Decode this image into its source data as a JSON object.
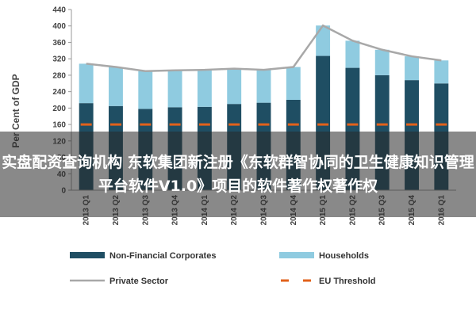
{
  "chart_data": {
    "type": "bar",
    "stacked": true,
    "ylabel": "Per Cent of GDP",
    "ylim": [
      0,
      440
    ],
    "yticks": [
      0,
      40,
      80,
      120,
      160,
      200,
      240,
      280,
      320,
      360,
      400,
      440
    ],
    "categories": [
      "2013 Q1",
      "2013 Q2",
      "2013 Q3",
      "2013 Q4",
      "2014 Q1",
      "2014 Q2",
      "2014 Q3",
      "2014 Q4",
      "2015 Q1",
      "2015 Q2",
      "2015 Q3",
      "2015 Q4",
      "2016 Q1"
    ],
    "series": [
      {
        "name": "Non-Financial Corporates",
        "kind": "bar",
        "color": "#1f4e63",
        "values": [
          212,
          205,
          198,
          202,
          203,
          210,
          213,
          220,
          327,
          298,
          280,
          268,
          260
        ]
      },
      {
        "name": "Households",
        "kind": "bar",
        "color": "#8fcbe0",
        "values": [
          96,
          95,
          92,
          90,
          90,
          86,
          80,
          80,
          74,
          66,
          62,
          58,
          56
        ]
      },
      {
        "name": "Private Sector",
        "kind": "line",
        "color": "#a8a8a8",
        "values": [
          308,
          300,
          290,
          292,
          293,
          296,
          293,
          300,
          401,
          364,
          342,
          326,
          316
        ]
      },
      {
        "name": "EU Threshold",
        "kind": "dash",
        "color": "#e2621b",
        "values": [
          160,
          160,
          160,
          160,
          160,
          160,
          160,
          160,
          160,
          160,
          160,
          160,
          160
        ]
      }
    ],
    "grid": false,
    "legend_position": "bottom"
  },
  "overlay": {
    "text": "实盘配资查询机构 东软集团新注册《东软群智协同的卫生健康知识管理平台软件V1.0》项目的软件著作权著作权"
  }
}
